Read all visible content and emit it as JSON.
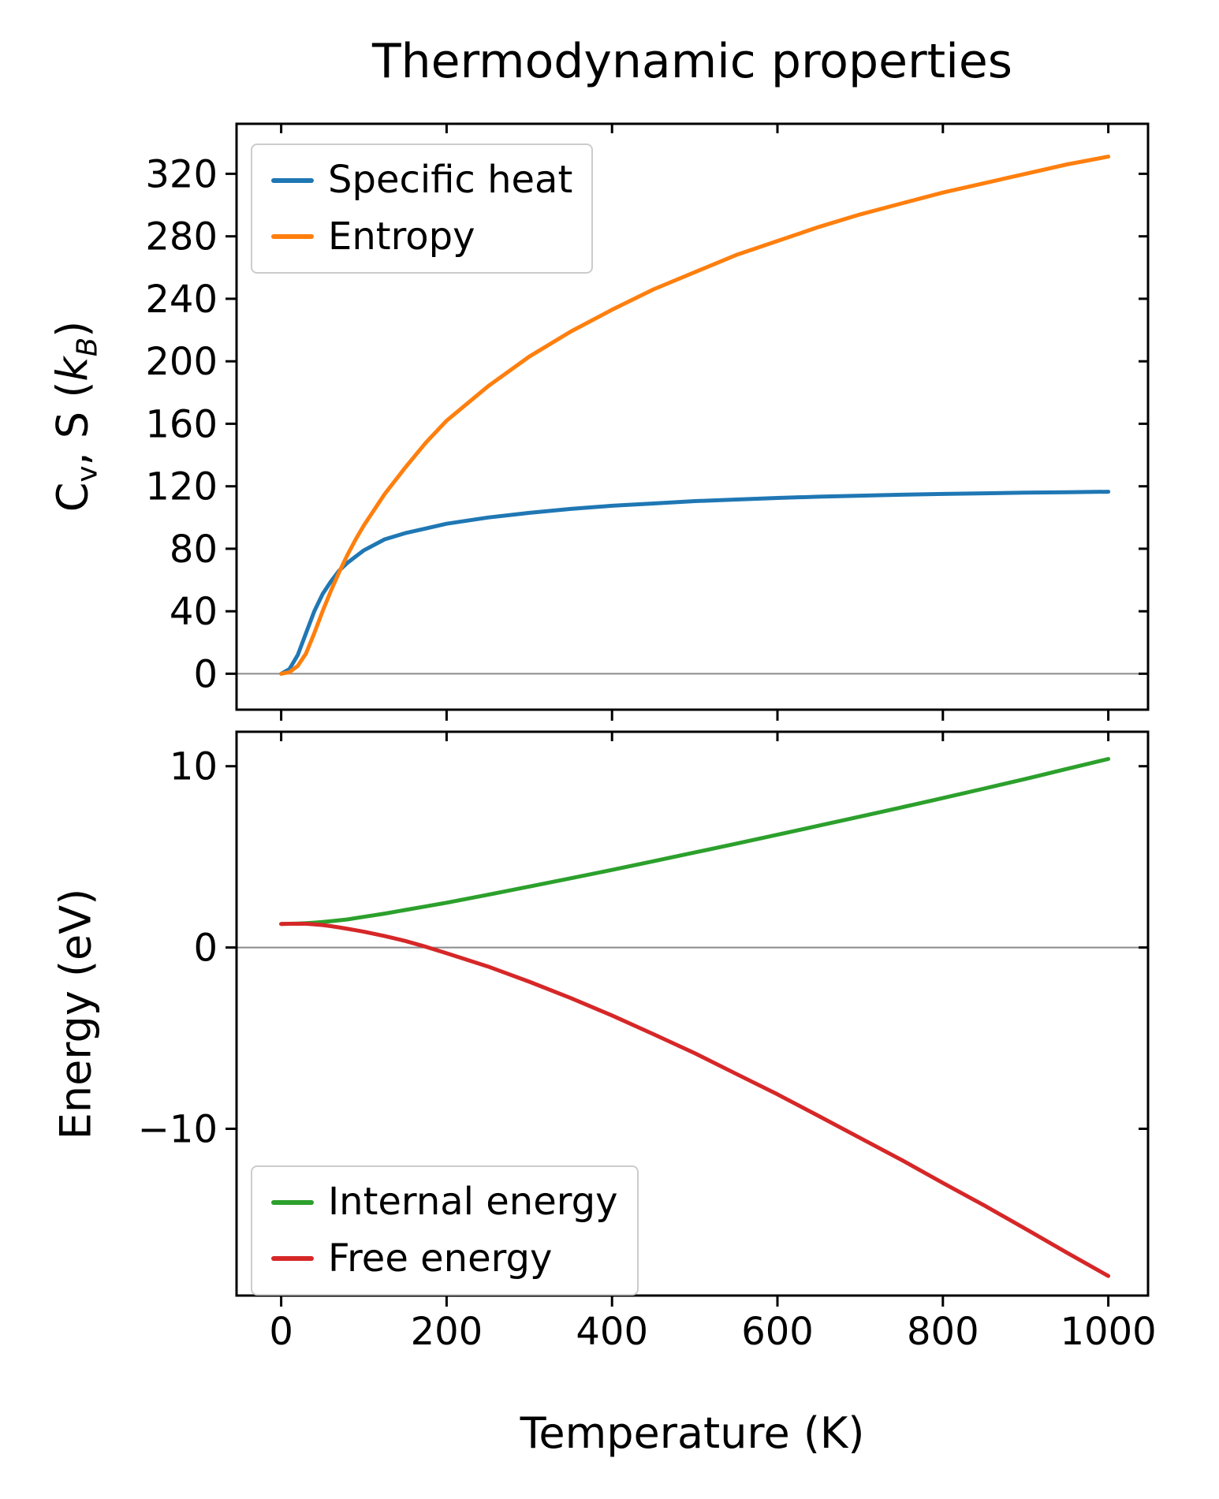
{
  "title": "Thermodynamic properties",
  "labels": {
    "xlabel": "Temperature (K)",
    "ylabel_bottom": "Energy (eV)",
    "ylabel_top_parts": {
      "p1": "C",
      "s1": "v",
      "p2": ", S (",
      "p3": "k",
      "s2": "B",
      "p4": ")"
    }
  },
  "colors": {
    "specific_heat": "#1f77b4",
    "entropy": "#ff7f0e",
    "internal_energy": "#2ca02c",
    "free_energy": "#d62728",
    "axhline": "#8a8a8a",
    "spine": "#000000"
  },
  "chart_data": [
    {
      "type": "line",
      "panel": "thermal-functions",
      "ylabel": "Cv, S (kB)",
      "x": [
        0,
        10,
        20,
        30,
        40,
        50,
        60,
        70,
        80,
        90,
        100,
        125,
        150,
        175,
        200,
        250,
        300,
        350,
        400,
        450,
        500,
        550,
        600,
        650,
        700,
        750,
        800,
        850,
        900,
        950,
        1000
      ],
      "series": [
        {
          "name": "Specific heat",
          "color": "#1f77b4",
          "values": [
            0,
            3,
            12,
            26,
            40,
            51,
            59,
            66,
            71,
            75,
            79,
            86,
            90,
            93,
            96,
            100,
            103,
            105.5,
            107.5,
            109,
            110.5,
            111.5,
            112.5,
            113.3,
            114,
            114.6,
            115.1,
            115.5,
            115.9,
            116.2,
            116.5
          ]
        },
        {
          "name": "Entropy",
          "color": "#ff7f0e",
          "values": [
            0,
            1,
            5,
            13,
            26,
            40,
            53,
            65,
            76,
            86,
            95,
            115,
            132,
            148,
            162,
            184,
            203,
            219,
            233,
            246,
            257,
            268,
            277,
            286,
            294,
            301,
            308,
            314,
            320,
            326,
            331
          ]
        }
      ],
      "xlim": [
        -54,
        1048
      ],
      "ylim": [
        -23,
        352
      ],
      "yticks": [
        0,
        40,
        80,
        120,
        160,
        200,
        240,
        280,
        320
      ],
      "xticks": [
        0,
        200,
        400,
        600,
        800,
        1000
      ],
      "xtick_labels_visible": false,
      "axhline": 0,
      "grid": false,
      "legend_position": "upper left"
    },
    {
      "type": "line",
      "panel": "energies",
      "ylabel": "Energy (eV)",
      "xlabel": "Temperature (K)",
      "x": [
        0,
        10,
        20,
        30,
        40,
        50,
        60,
        70,
        80,
        90,
        100,
        125,
        150,
        175,
        200,
        250,
        300,
        350,
        400,
        450,
        500,
        550,
        600,
        650,
        700,
        750,
        800,
        850,
        900,
        950,
        1000
      ],
      "series": [
        {
          "name": "Internal energy",
          "color": "#2ca02c",
          "values": [
            1.3,
            1.31,
            1.32,
            1.34,
            1.37,
            1.41,
            1.45,
            1.5,
            1.55,
            1.62,
            1.69,
            1.87,
            2.07,
            2.27,
            2.47,
            2.91,
            3.36,
            3.82,
            4.28,
            4.76,
            5.24,
            5.73,
            6.22,
            6.72,
            7.22,
            7.73,
            8.24,
            8.77,
            9.3,
            9.85,
            10.4
          ]
        },
        {
          "name": "Free energy",
          "color": "#d62728",
          "values": [
            1.3,
            1.31,
            1.31,
            1.31,
            1.28,
            1.24,
            1.18,
            1.11,
            1.03,
            0.95,
            0.87,
            0.63,
            0.36,
            0.04,
            -0.32,
            -1.05,
            -1.89,
            -2.79,
            -3.75,
            -4.78,
            -5.83,
            -6.97,
            -8.1,
            -9.3,
            -10.51,
            -11.72,
            -12.99,
            -14.23,
            -15.52,
            -16.84,
            -18.12
          ]
        }
      ],
      "xlim": [
        -54,
        1048
      ],
      "ylim": [
        -19.2,
        11.9
      ],
      "yticks": [
        -10,
        0,
        10
      ],
      "xticks": [
        0,
        200,
        400,
        600,
        800,
        1000
      ],
      "xtick_labels_visible": true,
      "axhline": 0,
      "grid": false,
      "legend_position": "lower left"
    }
  ]
}
